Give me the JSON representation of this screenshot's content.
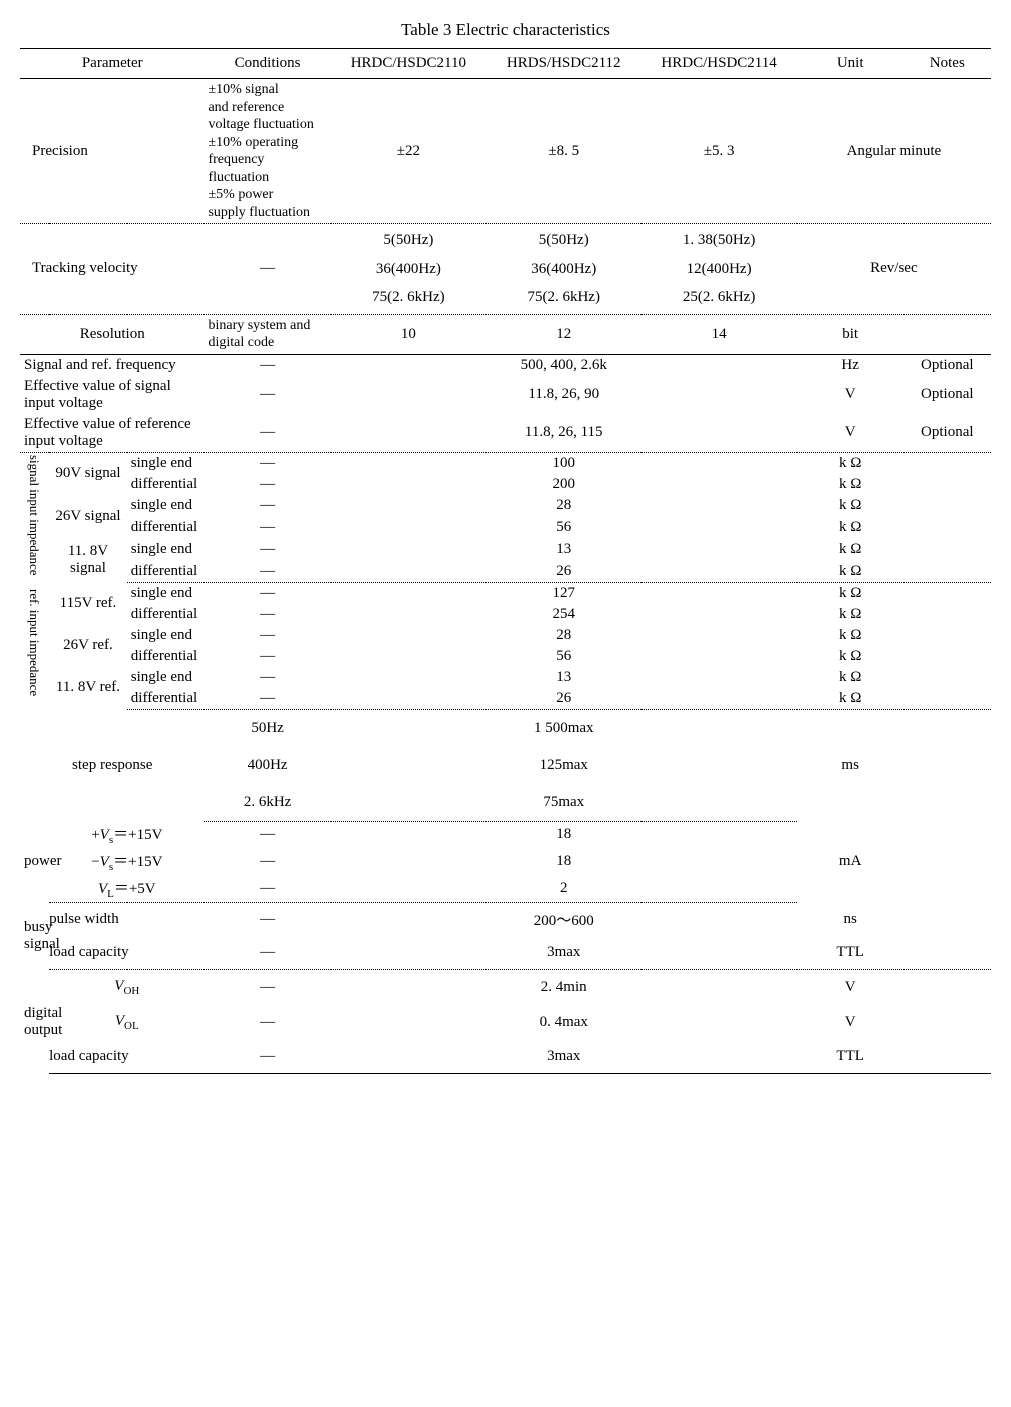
{
  "title": "Table 3  Electric characteristics",
  "columns": {
    "param": "Parameter",
    "cond": "Conditions",
    "c1": "HRDC/HSDC2110",
    "c2": "HRDS/HSDC2112",
    "c3": "HRDC/HSDC2114",
    "unit": "Unit",
    "notes": "Notes"
  },
  "precision": {
    "label": "Precision",
    "cond": "±10%  signal\nand reference\nvoltage fluctuation\n±10%  operating\nfrequency fluctuation\n±5%  power\nsupply fluctuation",
    "v1": "±22",
    "v2": "±8. 5",
    "v3": "±5. 3",
    "unit": "Angular minute"
  },
  "tracking": {
    "label": "Tracking velocity",
    "cond": "—",
    "v1": "5(50Hz)\n36(400Hz)\n75(2. 6kHz)",
    "v2": "5(50Hz)\n36(400Hz)\n75(2. 6kHz)",
    "v3": "1. 38(50Hz)\n12(400Hz)\n25(2. 6kHz)",
    "unit": "Rev/sec"
  },
  "resolution": {
    "label": "Resolution",
    "cond": "binary system and digital code",
    "v1": "10",
    "v2": "12",
    "v3": "14",
    "unit": "bit"
  },
  "sigfreq": {
    "label": "Signal and ref. frequency",
    "cond": "—",
    "val": "500, 400, 2.6k",
    "unit": "Hz",
    "notes": "Optional"
  },
  "effsig": {
    "label": "Effective value of signal input voltage",
    "cond": "—",
    "val": "11.8, 26, 90",
    "unit": "V",
    "notes": "Optional"
  },
  "effref": {
    "label": "Effective value of reference input voltage",
    "cond": "—",
    "val": "11.8, 26, 115",
    "unit": "V",
    "notes": "Optional"
  },
  "sii": {
    "group": "signal input impedance",
    "g90": "90V  signal",
    "g26": "26V  signal",
    "g11": "11. 8V signal",
    "se": "single end",
    "df": "differential",
    "v90se": "100",
    "v90df": "200",
    "v26se": "28",
    "v26df": "56",
    "v11se": "13",
    "v11df": "26",
    "unit": "k Ω",
    "cond": "—"
  },
  "rii": {
    "group": "ref. input impedance",
    "g115": "115V ref.",
    "g26": "26V ref.",
    "g11": "11. 8V ref.",
    "se": "single end",
    "df": "differential",
    "v115se": "127",
    "v115df": "254",
    "v26se": "28",
    "v26df": "56",
    "v11se": "13",
    "v11df": "26",
    "unit": "k Ω",
    "cond": "—"
  },
  "step": {
    "label": "step response",
    "r1c": "50Hz",
    "r1v": "1 500max",
    "r2c": "400Hz",
    "r2v": "125max",
    "r3c": "2. 6kHz",
    "r3v": "75max",
    "unit": "ms"
  },
  "power": {
    "label": "power",
    "r1p_pre": "+",
    "r1p_v": "V",
    "r1p_sub": "s",
    "r1p_post": "＝+15V",
    "r1v": "18",
    "r2p_pre": "−",
    "r2p_v": "V",
    "r2p_sub": "s",
    "r2p_post": "＝+15V",
    "r2v": "18",
    "r3p_v": "V",
    "r3p_sub": "L",
    "r3p_post": "＝+5V",
    "r3v": "2",
    "unit": "mA",
    "cond": "—"
  },
  "busy": {
    "label": "busy signal",
    "r1p": "pulse width",
    "r1v": "200～600",
    "r1u": "ns",
    "r2p": "load  capacity",
    "r2v": "3max",
    "r2u": "TTL",
    "cond": "—"
  },
  "dig": {
    "label": "digital output",
    "r1p_v": "V",
    "r1p_sub": "OH",
    "r1v": "2. 4min",
    "r1u": "V",
    "r2p_v": "V",
    "r2p_sub": "OL",
    "r2v": "0. 4max",
    "r2u": "V",
    "r3p": "load  capacity",
    "r3v": "3max",
    "r3u": "TTL",
    "cond": "—"
  },
  "col_widths": [
    "3%",
    "8%",
    "8%",
    "13%",
    "16%",
    "16%",
    "16%",
    "11%",
    "9%"
  ]
}
